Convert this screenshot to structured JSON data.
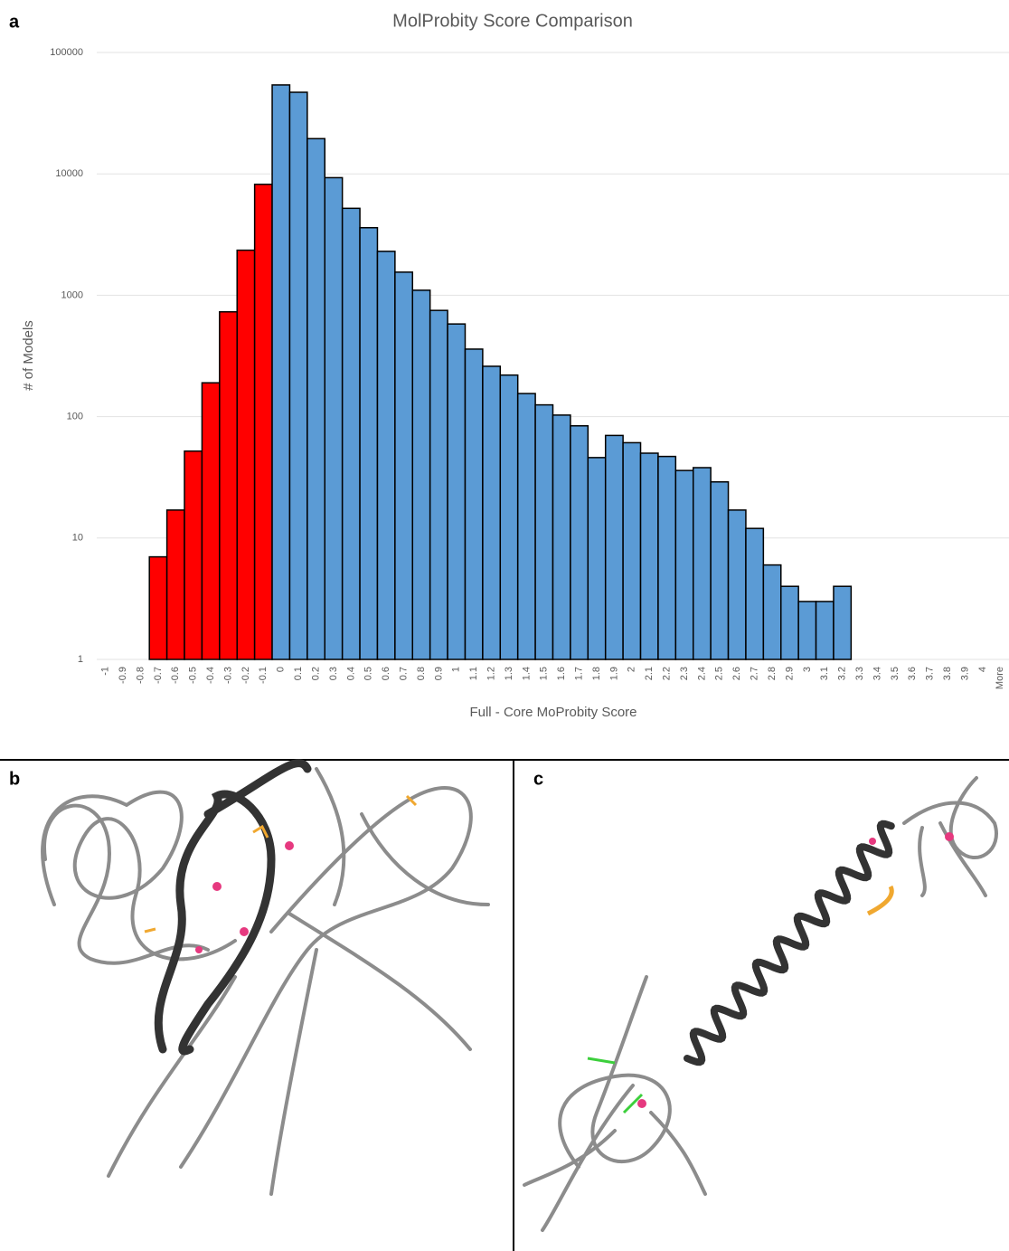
{
  "panel_labels": [
    "a",
    "b",
    "c"
  ],
  "chart_data": {
    "type": "bar",
    "title": "MolProbity Score Comparison",
    "x_label": "Full - Core MoProbity Score",
    "y_label": "# of Models",
    "log_scale": true,
    "grid": true,
    "categories": [
      "-1",
      "-0.9",
      "-0.8",
      "-0.7",
      "-0.6",
      "-0.5",
      "-0.4",
      "-0.3",
      "-0.2",
      "-0.1",
      "0",
      "0.1",
      "0.2",
      "0.3",
      "0.4",
      "0.5",
      "0.6",
      "0.7",
      "0.8",
      "0.9",
      "1",
      "1.1",
      "1.2",
      "1.3",
      "1.4",
      "1.5",
      "1.6",
      "1.7",
      "1.8",
      "1.9",
      "2",
      "2.1",
      "2.2",
      "2.3",
      "2.4",
      "2.5",
      "2.6",
      "2.7",
      "2.8",
      "2.9",
      "3",
      "3.1",
      "3.2",
      "3.3",
      "3.4",
      "3.5",
      "3.6",
      "3.7",
      "3.8",
      "3.9",
      "4",
      "More"
    ],
    "values": [
      null,
      null,
      null,
      7,
      17,
      52,
      190,
      730,
      2350,
      8200,
      54000,
      47000,
      19500,
      9300,
      5200,
      3600,
      2300,
      1550,
      1100,
      750,
      580,
      360,
      260,
      220,
      155,
      125,
      103,
      84,
      46,
      70,
      61,
      50,
      47,
      36,
      38,
      29,
      17,
      12,
      6,
      4,
      3,
      3,
      4,
      null,
      null,
      null,
      null,
      null,
      null,
      null,
      null,
      null
    ],
    "colors": [
      null,
      null,
      null,
      "#ff0000",
      "#ff0000",
      "#ff0000",
      "#ff0000",
      "#ff0000",
      "#ff0000",
      "#ff0000",
      "#5b9bd5",
      "#5b9bd5",
      "#5b9bd5",
      "#5b9bd5",
      "#5b9bd5",
      "#5b9bd5",
      "#5b9bd5",
      "#5b9bd5",
      "#5b9bd5",
      "#5b9bd5",
      "#5b9bd5",
      "#5b9bd5",
      "#5b9bd5",
      "#5b9bd5",
      "#5b9bd5",
      "#5b9bd5",
      "#5b9bd5",
      "#5b9bd5",
      "#5b9bd5",
      "#5b9bd5",
      "#5b9bd5",
      "#5b9bd5",
      "#5b9bd5",
      "#5b9bd5",
      "#5b9bd5",
      "#5b9bd5",
      "#5b9bd5",
      "#5b9bd5",
      "#5b9bd5",
      "#5b9bd5",
      "#5b9bd5",
      "#5b9bd5",
      "#5b9bd5",
      null,
      null,
      null,
      null,
      null,
      null,
      null,
      null,
      null
    ],
    "ylim": [
      1,
      100000
    ],
    "yticks": [
      1,
      10,
      100,
      1000,
      10000,
      100000
    ]
  }
}
